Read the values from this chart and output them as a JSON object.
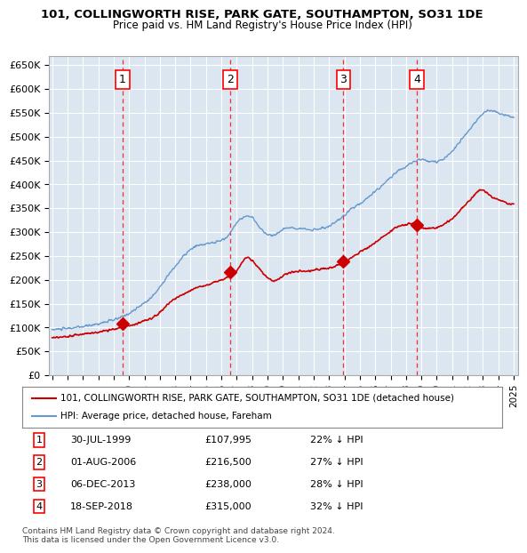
{
  "title1": "101, COLLINGWORTH RISE, PARK GATE, SOUTHAMPTON, SO31 1DE",
  "title2": "Price paid vs. HM Land Registry's House Price Index (HPI)",
  "ylim": [
    0,
    670000
  ],
  "yticks": [
    0,
    50000,
    100000,
    150000,
    200000,
    250000,
    300000,
    350000,
    400000,
    450000,
    500000,
    550000,
    600000,
    650000
  ],
  "bg_color": "#dce6f1",
  "plot_bg": "#dce6f1",
  "red_color": "#cc0000",
  "blue_color": "#6699cc",
  "sale_points": [
    {
      "year": 1999.58,
      "price": 107995,
      "label": "1"
    },
    {
      "year": 2006.58,
      "price": 216500,
      "label": "2"
    },
    {
      "year": 2013.92,
      "price": 238000,
      "label": "3"
    },
    {
      "year": 2018.71,
      "price": 315000,
      "label": "4"
    }
  ],
  "vline_years": [
    1999.58,
    2006.58,
    2013.92,
    2018.71
  ],
  "legend_entries": [
    "101, COLLINGWORTH RISE, PARK GATE, SOUTHAMPTON, SO31 1DE (detached house)",
    "HPI: Average price, detached house, Fareham"
  ],
  "table_rows": [
    [
      "1",
      "30-JUL-1999",
      "£107,995",
      "22% ↓ HPI"
    ],
    [
      "2",
      "01-AUG-2006",
      "£216,500",
      "27% ↓ HPI"
    ],
    [
      "3",
      "06-DEC-2013",
      "£238,000",
      "28% ↓ HPI"
    ],
    [
      "4",
      "18-SEP-2018",
      "£315,000",
      "32% ↓ HPI"
    ]
  ],
  "footer": "Contains HM Land Registry data © Crown copyright and database right 2024.\nThis data is licensed under the Open Government Licence v3.0."
}
